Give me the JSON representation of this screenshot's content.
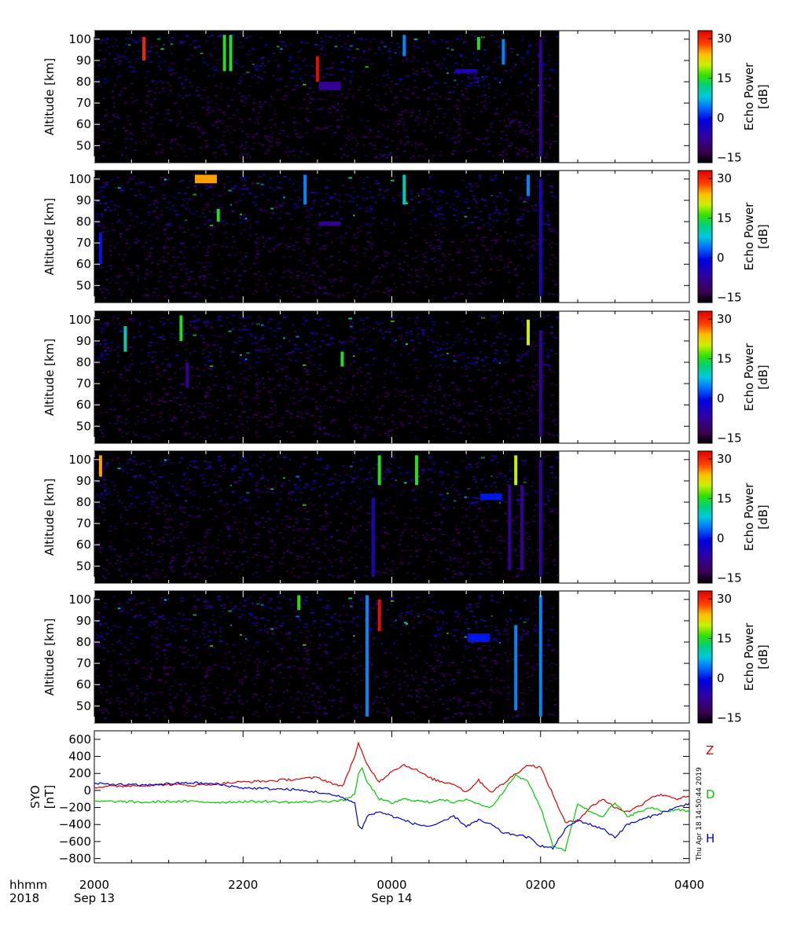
{
  "chart_data": [
    {
      "type": "heatmap",
      "panel": 1,
      "ylabel": "Altitude [km]",
      "ylim": [
        42,
        104
      ],
      "yticks": [
        50,
        60,
        70,
        80,
        90,
        100
      ],
      "colorbar": {
        "title": "Echo Power",
        "unit": "[dB]",
        "ticks": [
          -15,
          0,
          15,
          30
        ],
        "range": [
          -17,
          33
        ]
      },
      "data_end_time": "0215",
      "features": [
        {
          "t": "2040",
          "alt": [
            90,
            101
          ],
          "dB": 30
        },
        {
          "t": "2145",
          "alt": [
            85,
            102
          ],
          "dB": 15
        },
        {
          "t": "2150",
          "alt": [
            85,
            102
          ],
          "dB": 15
        },
        {
          "t": "2300",
          "alt": [
            80,
            92
          ],
          "dB": 32
        },
        {
          "t": "0010",
          "alt": [
            92,
            102
          ],
          "dB": 5
        },
        {
          "t": "0130",
          "alt": [
            88,
            100
          ],
          "dB": 5
        },
        {
          "t": "0110",
          "alt": [
            95,
            101
          ],
          "dB": 15
        },
        {
          "t": "2310",
          "alt": [
            76,
            80
          ],
          "dB": -8
        },
        {
          "t": "0100",
          "alt": [
            84,
            86
          ],
          "dB": -5
        },
        {
          "t": "0200",
          "alt": [
            45,
            100
          ],
          "dB": -8
        }
      ]
    },
    {
      "type": "heatmap",
      "panel": 2,
      "ylabel": "Altitude [km]",
      "ylim": [
        42,
        104
      ],
      "yticks": [
        50,
        60,
        70,
        80,
        90,
        100
      ],
      "colorbar": {
        "title": "Echo Power",
        "unit": "[dB]",
        "ticks": [
          -15,
          0,
          15,
          30
        ],
        "range": [
          -17,
          33
        ]
      },
      "data_end_time": "0215",
      "features": [
        {
          "t": "2005",
          "alt": [
            60,
            75
          ],
          "dB": 0
        },
        {
          "t": "2130",
          "alt": [
            98,
            102
          ],
          "dB": 25
        },
        {
          "t": "2140",
          "alt": [
            80,
            86
          ],
          "dB": 15
        },
        {
          "t": "2250",
          "alt": [
            88,
            102
          ],
          "dB": 5
        },
        {
          "t": "0010",
          "alt": [
            88,
            102
          ],
          "dB": 10
        },
        {
          "t": "0150",
          "alt": [
            92,
            102
          ],
          "dB": 5
        },
        {
          "t": "2310",
          "alt": [
            78,
            80
          ],
          "dB": -8
        },
        {
          "t": "0200",
          "alt": [
            45,
            100
          ],
          "dB": -5
        }
      ]
    },
    {
      "type": "heatmap",
      "panel": 3,
      "ylabel": "Altitude [km]",
      "ylim": [
        42,
        104
      ],
      "yticks": [
        50,
        60,
        70,
        80,
        90,
        100
      ],
      "colorbar": {
        "title": "Echo Power",
        "unit": "[dB]",
        "ticks": [
          -15,
          0,
          15,
          30
        ],
        "range": [
          -17,
          33
        ]
      },
      "data_end_time": "0215",
      "features": [
        {
          "t": "2025",
          "alt": [
            85,
            97
          ],
          "dB": 10
        },
        {
          "t": "2110",
          "alt": [
            90,
            102
          ],
          "dB": 15
        },
        {
          "t": "2320",
          "alt": [
            78,
            85
          ],
          "dB": 15
        },
        {
          "t": "0150",
          "alt": [
            88,
            100
          ],
          "dB": 20
        },
        {
          "t": "2115",
          "alt": [
            68,
            80
          ],
          "dB": -8
        },
        {
          "t": "0200",
          "alt": [
            45,
            95
          ],
          "dB": -8
        }
      ]
    },
    {
      "type": "heatmap",
      "panel": 4,
      "ylabel": "Altitude [km]",
      "ylim": [
        42,
        104
      ],
      "yticks": [
        50,
        60,
        70,
        80,
        90,
        100
      ],
      "colorbar": {
        "title": "Echo Power",
        "unit": "[dB]",
        "ticks": [
          -15,
          0,
          15,
          30
        ],
        "range": [
          -17,
          33
        ]
      },
      "data_end_time": "0215",
      "features": [
        {
          "t": "2005",
          "alt": [
            92,
            102
          ],
          "dB": 25
        },
        {
          "t": "2350",
          "alt": [
            88,
            102
          ],
          "dB": 15
        },
        {
          "t": "0020",
          "alt": [
            88,
            102
          ],
          "dB": 15
        },
        {
          "t": "0140",
          "alt": [
            88,
            102
          ],
          "dB": 20
        },
        {
          "t": "2345",
          "alt": [
            45,
            82
          ],
          "dB": -5
        },
        {
          "t": "0135",
          "alt": [
            48,
            88
          ],
          "dB": -8
        },
        {
          "t": "0145",
          "alt": [
            48,
            88
          ],
          "dB": -8
        },
        {
          "t": "0200",
          "alt": [
            45,
            100
          ],
          "dB": -8
        },
        {
          "t": "0120",
          "alt": [
            81,
            84
          ],
          "dB": 0
        }
      ]
    },
    {
      "type": "heatmap",
      "panel": 5,
      "ylabel": "Altitude [km]",
      "ylim": [
        42,
        104
      ],
      "yticks": [
        50,
        60,
        70,
        80,
        90,
        100
      ],
      "colorbar": {
        "title": "Echo Power",
        "unit": "[dB]",
        "ticks": [
          -15,
          0,
          15,
          30
        ],
        "range": [
          -17,
          33
        ]
      },
      "data_end_time": "0215",
      "features": [
        {
          "t": "2245",
          "alt": [
            95,
            102
          ],
          "dB": 15
        },
        {
          "t": "2350",
          "alt": [
            85,
            100
          ],
          "dB": 32
        },
        {
          "t": "2340",
          "alt": [
            45,
            102
          ],
          "dB": 5
        },
        {
          "t": "0140",
          "alt": [
            48,
            88
          ],
          "dB": 5
        },
        {
          "t": "0200",
          "alt": [
            45,
            102
          ],
          "dB": 5
        },
        {
          "t": "0110",
          "alt": [
            80,
            84
          ],
          "dB": 0
        }
      ]
    },
    {
      "type": "line",
      "panel": 6,
      "ylabel": "SYO [nT]",
      "ylim": [
        -850,
        700
      ],
      "yticks": [
        -800,
        -600,
        -400,
        -200,
        0,
        200,
        400,
        600
      ],
      "series": [
        {
          "name": "Z",
          "color": "#dd0000",
          "x": [
            "2000",
            "2020",
            "2040",
            "2100",
            "2120",
            "2140",
            "2200",
            "2220",
            "2240",
            "2300",
            "2320",
            "2330",
            "2333",
            "2340",
            "2350",
            "0000",
            "0010",
            "0020",
            "0030",
            "0040",
            "0050",
            "0100",
            "0110",
            "0120",
            "0130",
            "0140",
            "0150",
            "0200",
            "0210",
            "0220",
            "0230",
            "0240",
            "0250",
            "0300",
            "0310",
            "0320",
            "0330",
            "0340",
            "0350",
            "0400"
          ],
          "values": [
            40,
            50,
            60,
            70,
            60,
            80,
            100,
            110,
            130,
            150,
            40,
            400,
            550,
            300,
            100,
            230,
            300,
            240,
            150,
            100,
            80,
            -20,
            120,
            -20,
            80,
            200,
            300,
            270,
            -50,
            -380,
            -350,
            -200,
            -100,
            -200,
            -250,
            -180,
            -70,
            -50,
            -100,
            -70
          ]
        },
        {
          "name": "D",
          "color": "#00cc00",
          "x": [
            "2000",
            "2020",
            "2040",
            "2100",
            "2120",
            "2140",
            "2200",
            "2220",
            "2240",
            "2300",
            "2320",
            "2330",
            "2333",
            "2336",
            "2340",
            "2350",
            "0000",
            "0010",
            "0020",
            "0030",
            "0040",
            "0050",
            "0100",
            "0110",
            "0120",
            "0130",
            "0140",
            "0150",
            "0200",
            "0210",
            "0220",
            "0230",
            "0240",
            "0250",
            "0300",
            "0310",
            "0320",
            "0330",
            "0340",
            "0350",
            "0400"
          ],
          "values": [
            -130,
            -130,
            -140,
            -130,
            -130,
            -140,
            -130,
            -130,
            -140,
            -130,
            -120,
            -50,
            200,
            250,
            100,
            -100,
            -150,
            -100,
            -120,
            -140,
            -100,
            -150,
            -100,
            -160,
            -200,
            -10,
            180,
            100,
            -200,
            -650,
            -700,
            -150,
            -250,
            -300,
            -150,
            -300,
            -250,
            -200,
            -250,
            -220,
            -250
          ]
        },
        {
          "name": "H",
          "color": "#0000cc",
          "x": [
            "2000",
            "2020",
            "2040",
            "2100",
            "2120",
            "2140",
            "2200",
            "2220",
            "2240",
            "2300",
            "2320",
            "2330",
            "2333",
            "2336",
            "2340",
            "2350",
            "0000",
            "0010",
            "0020",
            "0030",
            "0040",
            "0050",
            "0100",
            "0110",
            "0120",
            "0130",
            "0140",
            "0150",
            "0200",
            "0210",
            "0220",
            "0230",
            "0240",
            "0250",
            "0300",
            "0310",
            "0320",
            "0330",
            "0340",
            "0350",
            "0400"
          ],
          "values": [
            80,
            70,
            60,
            80,
            90,
            70,
            30,
            20,
            10,
            -20,
            -80,
            -150,
            -400,
            -450,
            -300,
            -250,
            -300,
            -350,
            -400,
            -420,
            -380,
            -300,
            -420,
            -350,
            -400,
            -500,
            -520,
            -550,
            -650,
            -680,
            -450,
            -350,
            -400,
            -450,
            -550,
            -400,
            -350,
            -300,
            -250,
            -200,
            -150
          ]
        }
      ]
    }
  ],
  "xaxis": {
    "prefix_line1": "hhmm",
    "prefix_line2": "2018",
    "ticks": [
      {
        "label": "2000",
        "date": "Sep 13"
      },
      {
        "label": "2200",
        "date": ""
      },
      {
        "label": "0000",
        "date": "Sep 14"
      },
      {
        "label": "0200",
        "date": ""
      },
      {
        "label": "0400",
        "date": ""
      }
    ]
  },
  "timestamp": "Thu Apr 18 14:50:44 2019",
  "colors": {
    "background_panel": "#000000",
    "Z": "#dd0000",
    "D": "#00cc00",
    "H": "#0000cc"
  }
}
